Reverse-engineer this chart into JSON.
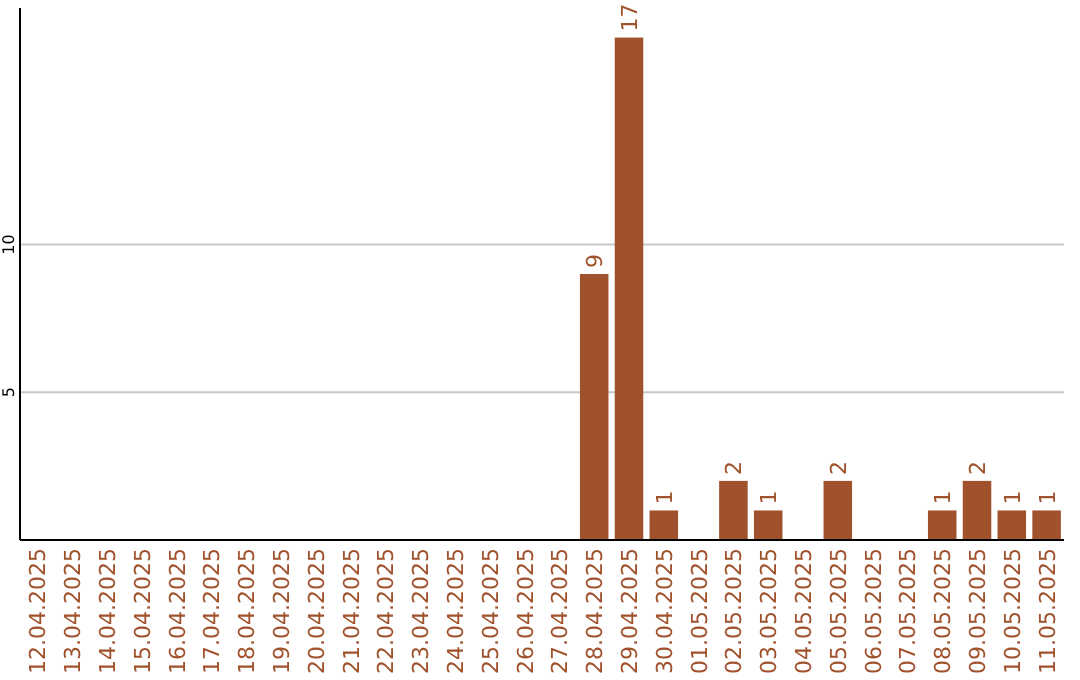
{
  "chart_data": {
    "type": "bar",
    "categories": [
      "12.04.2025",
      "13.04.2025",
      "14.04.2025",
      "15.04.2025",
      "16.04.2025",
      "17.04.2025",
      "18.04.2025",
      "19.04.2025",
      "20.04.2025",
      "21.04.2025",
      "22.04.2025",
      "23.04.2025",
      "24.04.2025",
      "25.04.2025",
      "26.04.2025",
      "27.04.2025",
      "28.04.2025",
      "29.04.2025",
      "30.04.2025",
      "01.05.2025",
      "02.05.2025",
      "03.05.2025",
      "04.05.2025",
      "05.05.2025",
      "06.05.2025",
      "07.05.2025",
      "08.05.2025",
      "09.05.2025",
      "10.05.2025",
      "11.05.2025"
    ],
    "values": [
      0,
      0,
      0,
      0,
      0,
      0,
      0,
      0,
      0,
      0,
      0,
      0,
      0,
      0,
      0,
      0,
      9,
      17,
      1,
      0,
      2,
      1,
      0,
      2,
      0,
      0,
      1,
      2,
      1,
      1
    ],
    "value_labels": [
      null,
      null,
      null,
      null,
      null,
      null,
      null,
      null,
      null,
      null,
      null,
      null,
      null,
      null,
      null,
      null,
      "9",
      "17",
      "1",
      null,
      "2",
      "1",
      null,
      "2",
      null,
      null,
      "1",
      "2",
      "1",
      "1"
    ],
    "color": "#a0522d",
    "ylim": [
      0,
      18
    ],
    "yticks": [
      5,
      10
    ],
    "grid": "y"
  }
}
